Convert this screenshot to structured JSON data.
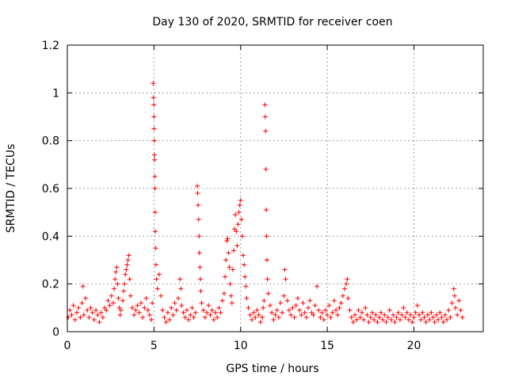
{
  "chart_data": {
    "type": "scatter",
    "title": "Day 130 of 2020, SRMTID for receiver coen",
    "xlabel": "GPS time / hours",
    "ylabel": "SRMTID / TECUs",
    "xlim": [
      0,
      24
    ],
    "ylim": [
      0,
      1.2
    ],
    "xticks": [
      0,
      5,
      10,
      15,
      20
    ],
    "xtick_labels": [
      "0",
      "5",
      "10",
      "15",
      "20"
    ],
    "yticks": [
      0,
      0.2,
      0.4,
      0.6,
      0.8,
      1.0,
      1.2
    ],
    "ytick_labels": [
      "0",
      "0.2",
      "0.4",
      "0.6",
      "0.8",
      "1",
      "1.2"
    ],
    "grid": true,
    "marker": "+",
    "color": "#ff0000",
    "series": [
      {
        "name": "SRMTID",
        "points": [
          [
            0.05,
            0.06
          ],
          [
            0.15,
            0.09
          ],
          [
            0.25,
            0.07
          ],
          [
            0.35,
            0.11
          ],
          [
            0.45,
            0.05
          ],
          [
            0.55,
            0.08
          ],
          [
            0.65,
            0.1
          ],
          [
            0.75,
            0.06
          ],
          [
            0.85,
            0.12
          ],
          [
            0.9,
            0.19
          ],
          [
            0.95,
            0.07
          ],
          [
            1.05,
            0.14
          ],
          [
            1.15,
            0.09
          ],
          [
            1.25,
            0.06
          ],
          [
            1.35,
            0.1
          ],
          [
            1.45,
            0.08
          ],
          [
            1.55,
            0.05
          ],
          [
            1.65,
            0.09
          ],
          [
            1.75,
            0.07
          ],
          [
            1.85,
            0.04
          ],
          [
            1.95,
            0.08
          ],
          [
            2.05,
            0.06
          ],
          [
            2.15,
            0.1
          ],
          [
            2.25,
            0.09
          ],
          [
            2.35,
            0.13
          ],
          [
            2.45,
            0.11
          ],
          [
            2.55,
            0.15
          ],
          [
            2.65,
            0.12
          ],
          [
            2.7,
            0.18
          ],
          [
            2.75,
            0.22
          ],
          [
            2.8,
            0.25
          ],
          [
            2.85,
            0.27
          ],
          [
            2.9,
            0.2
          ],
          [
            2.95,
            0.14
          ],
          [
            3.0,
            0.1
          ],
          [
            3.05,
            0.07
          ],
          [
            3.1,
            0.09
          ],
          [
            3.2,
            0.13
          ],
          [
            3.25,
            0.17
          ],
          [
            3.3,
            0.2
          ],
          [
            3.35,
            0.24
          ],
          [
            3.4,
            0.26
          ],
          [
            3.45,
            0.28
          ],
          [
            3.5,
            0.3
          ],
          [
            3.55,
            0.32
          ],
          [
            3.6,
            0.22
          ],
          [
            3.65,
            0.15
          ],
          [
            3.75,
            0.1
          ],
          [
            3.85,
            0.07
          ],
          [
            3.95,
            0.09
          ],
          [
            4.05,
            0.11
          ],
          [
            4.15,
            0.08
          ],
          [
            4.25,
            0.12
          ],
          [
            4.35,
            0.06
          ],
          [
            4.45,
            0.1
          ],
          [
            4.55,
            0.14
          ],
          [
            4.65,
            0.09
          ],
          [
            4.75,
            0.07
          ],
          [
            4.85,
            0.05
          ],
          [
            4.9,
            0.12
          ],
          [
            4.95,
            1.04
          ],
          [
            4.97,
            0.98
          ],
          [
            4.99,
            0.95
          ],
          [
            5.0,
            0.9
          ],
          [
            5.01,
            0.85
          ],
          [
            5.02,
            0.8
          ],
          [
            5.03,
            0.74
          ],
          [
            5.04,
            0.72
          ],
          [
            5.05,
            0.65
          ],
          [
            5.06,
            0.6
          ],
          [
            5.07,
            0.5
          ],
          [
            5.08,
            0.42
          ],
          [
            5.1,
            0.35
          ],
          [
            5.12,
            0.28
          ],
          [
            5.15,
            0.22
          ],
          [
            5.2,
            0.18
          ],
          [
            5.3,
            0.24
          ],
          [
            5.4,
            0.15
          ],
          [
            5.5,
            0.09
          ],
          [
            5.6,
            0.06
          ],
          [
            5.7,
            0.04
          ],
          [
            5.8,
            0.08
          ],
          [
            5.9,
            0.05
          ],
          [
            6.0,
            0.1
          ],
          [
            6.1,
            0.07
          ],
          [
            6.2,
            0.12
          ],
          [
            6.3,
            0.09
          ],
          [
            6.4,
            0.14
          ],
          [
            6.5,
            0.22
          ],
          [
            6.55,
            0.18
          ],
          [
            6.6,
            0.11
          ],
          [
            6.7,
            0.08
          ],
          [
            6.8,
            0.06
          ],
          [
            6.9,
            0.09
          ],
          [
            7.0,
            0.05
          ],
          [
            7.1,
            0.07
          ],
          [
            7.2,
            0.1
          ],
          [
            7.3,
            0.06
          ],
          [
            7.4,
            0.08
          ],
          [
            7.5,
            0.61
          ],
          [
            7.52,
            0.58
          ],
          [
            7.55,
            0.53
          ],
          [
            7.58,
            0.47
          ],
          [
            7.6,
            0.4
          ],
          [
            7.62,
            0.33
          ],
          [
            7.65,
            0.27
          ],
          [
            7.68,
            0.22
          ],
          [
            7.7,
            0.17
          ],
          [
            7.75,
            0.12
          ],
          [
            7.85,
            0.09
          ],
          [
            7.95,
            0.06
          ],
          [
            8.05,
            0.08
          ],
          [
            8.15,
            0.11
          ],
          [
            8.25,
            0.07
          ],
          [
            8.35,
            0.09
          ],
          [
            8.45,
            0.05
          ],
          [
            8.55,
            0.08
          ],
          [
            8.65,
            0.06
          ],
          [
            8.75,
            0.1
          ],
          [
            8.85,
            0.08
          ],
          [
            8.95,
            0.13
          ],
          [
            9.05,
            0.16
          ],
          [
            9.1,
            0.23
          ],
          [
            9.15,
            0.3
          ],
          [
            9.2,
            0.38
          ],
          [
            9.25,
            0.39
          ],
          [
            9.3,
            0.33
          ],
          [
            9.35,
            0.27
          ],
          [
            9.4,
            0.2
          ],
          [
            9.45,
            0.15
          ],
          [
            9.5,
            0.12
          ],
          [
            9.55,
            0.26
          ],
          [
            9.6,
            0.34
          ],
          [
            9.65,
            0.43
          ],
          [
            9.7,
            0.49
          ],
          [
            9.75,
            0.42
          ],
          [
            9.8,
            0.36
          ],
          [
            9.85,
            0.45
          ],
          [
            9.9,
            0.5
          ],
          [
            9.95,
            0.53
          ],
          [
            10.0,
            0.55
          ],
          [
            10.05,
            0.47
          ],
          [
            10.1,
            0.4
          ],
          [
            10.15,
            0.32
          ],
          [
            10.2,
            0.28
          ],
          [
            10.25,
            0.23
          ],
          [
            10.3,
            0.19
          ],
          [
            10.35,
            0.14
          ],
          [
            10.45,
            0.1
          ],
          [
            10.55,
            0.07
          ],
          [
            10.65,
            0.05
          ],
          [
            10.75,
            0.08
          ],
          [
            10.85,
            0.06
          ],
          [
            10.95,
            0.09
          ],
          [
            11.05,
            0.07
          ],
          [
            11.15,
            0.04
          ],
          [
            11.25,
            0.06
          ],
          [
            11.3,
            0.1
          ],
          [
            11.35,
            0.13
          ],
          [
            11.4,
            0.95
          ],
          [
            11.42,
            0.9
          ],
          [
            11.44,
            0.84
          ],
          [
            11.46,
            0.68
          ],
          [
            11.48,
            0.51
          ],
          [
            11.5,
            0.4
          ],
          [
            11.52,
            0.3
          ],
          [
            11.55,
            0.22
          ],
          [
            11.6,
            0.16
          ],
          [
            11.7,
            0.11
          ],
          [
            11.8,
            0.08
          ],
          [
            11.9,
            0.05
          ],
          [
            12.0,
            0.07
          ],
          [
            12.1,
            0.09
          ],
          [
            12.2,
            0.06
          ],
          [
            12.3,
            0.12
          ],
          [
            12.4,
            0.08
          ],
          [
            12.5,
            0.15
          ],
          [
            12.55,
            0.26
          ],
          [
            12.6,
            0.22
          ],
          [
            12.7,
            0.13
          ],
          [
            12.8,
            0.09
          ],
          [
            12.9,
            0.07
          ],
          [
            13.0,
            0.1
          ],
          [
            13.1,
            0.06
          ],
          [
            13.2,
            0.11
          ],
          [
            13.3,
            0.14
          ],
          [
            13.4,
            0.09
          ],
          [
            13.5,
            0.07
          ],
          [
            13.6,
            0.12
          ],
          [
            13.7,
            0.08
          ],
          [
            13.8,
            0.06
          ],
          [
            13.9,
            0.1
          ],
          [
            14.0,
            0.13
          ],
          [
            14.1,
            0.08
          ],
          [
            14.2,
            0.07
          ],
          [
            14.3,
            0.11
          ],
          [
            14.4,
            0.19
          ],
          [
            14.5,
            0.09
          ],
          [
            14.6,
            0.06
          ],
          [
            14.7,
            0.08
          ],
          [
            14.8,
            0.05
          ],
          [
            14.9,
            0.09
          ],
          [
            15.0,
            0.07
          ],
          [
            15.1,
            0.11
          ],
          [
            15.2,
            0.06
          ],
          [
            15.3,
            0.08
          ],
          [
            15.4,
            0.13
          ],
          [
            15.5,
            0.09
          ],
          [
            15.6,
            0.07
          ],
          [
            15.7,
            0.1
          ],
          [
            15.8,
            0.12
          ],
          [
            15.9,
            0.15
          ],
          [
            16.0,
            0.18
          ],
          [
            16.1,
            0.2
          ],
          [
            16.15,
            0.22
          ],
          [
            16.2,
            0.14
          ],
          [
            16.3,
            0.09
          ],
          [
            16.4,
            0.06
          ],
          [
            16.5,
            0.04
          ],
          [
            16.6,
            0.07
          ],
          [
            16.7,
            0.05
          ],
          [
            16.8,
            0.09
          ],
          [
            16.9,
            0.06
          ],
          [
            17.0,
            0.08
          ],
          [
            17.1,
            0.05
          ],
          [
            17.2,
            0.1
          ],
          [
            17.3,
            0.07
          ],
          [
            17.4,
            0.04
          ],
          [
            17.5,
            0.06
          ],
          [
            17.6,
            0.08
          ],
          [
            17.7,
            0.05
          ],
          [
            17.8,
            0.07
          ],
          [
            17.9,
            0.04
          ],
          [
            18.0,
            0.06
          ],
          [
            18.1,
            0.08
          ],
          [
            18.2,
            0.05
          ],
          [
            18.3,
            0.07
          ],
          [
            18.4,
            0.04
          ],
          [
            18.5,
            0.06
          ],
          [
            18.6,
            0.09
          ],
          [
            18.7,
            0.05
          ],
          [
            18.8,
            0.07
          ],
          [
            18.9,
            0.04
          ],
          [
            19.0,
            0.06
          ],
          [
            19.1,
            0.08
          ],
          [
            19.2,
            0.05
          ],
          [
            19.3,
            0.07
          ],
          [
            19.4,
            0.1
          ],
          [
            19.5,
            0.06
          ],
          [
            19.6,
            0.08
          ],
          [
            19.7,
            0.05
          ],
          [
            19.8,
            0.07
          ],
          [
            19.9,
            0.04
          ],
          [
            20.0,
            0.06
          ],
          [
            20.1,
            0.08
          ],
          [
            20.2,
            0.11
          ],
          [
            20.3,
            0.07
          ],
          [
            20.4,
            0.05
          ],
          [
            20.5,
            0.08
          ],
          [
            20.6,
            0.06
          ],
          [
            20.7,
            0.04
          ],
          [
            20.8,
            0.07
          ],
          [
            20.9,
            0.05
          ],
          [
            21.0,
            0.08
          ],
          [
            21.1,
            0.06
          ],
          [
            21.2,
            0.04
          ],
          [
            21.3,
            0.07
          ],
          [
            21.4,
            0.05
          ],
          [
            21.5,
            0.08
          ],
          [
            21.6,
            0.06
          ],
          [
            21.7,
            0.04
          ],
          [
            21.8,
            0.07
          ],
          [
            21.9,
            0.05
          ],
          [
            22.0,
            0.09
          ],
          [
            22.1,
            0.06
          ],
          [
            22.2,
            0.12
          ],
          [
            22.3,
            0.18
          ],
          [
            22.35,
            0.15
          ],
          [
            22.4,
            0.1
          ],
          [
            22.5,
            0.07
          ],
          [
            22.6,
            0.13
          ],
          [
            22.7,
            0.09
          ],
          [
            22.8,
            0.06
          ]
        ]
      }
    ]
  }
}
